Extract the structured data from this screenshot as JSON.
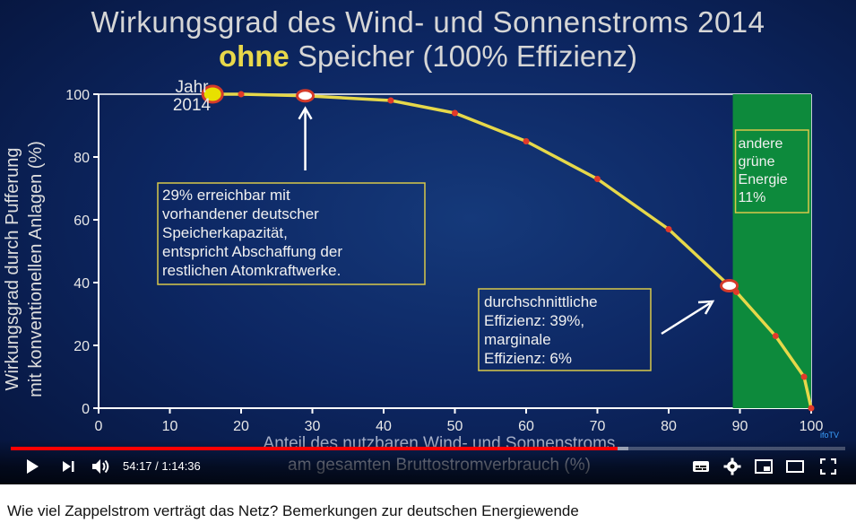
{
  "slide": {
    "title_line1": "Wirkungsgrad des Wind- und Sonnenstroms 2014",
    "title_line2_accent": "ohne",
    "title_line2_rest": " Speicher (100% Effizienz)",
    "year_label_line1": "Jahr",
    "year_label_line2": "2014",
    "green_zone_text": [
      "andere",
      "grüne",
      "Energie",
      "11%"
    ],
    "box1_text": [
      "29% erreichbar mit",
      "vorhandener deutscher",
      "Speicherkapazität,",
      "entspricht Abschaffung der",
      "restlichen Atomkraftwerke."
    ],
    "box2_text": [
      "durchschnittliche",
      "Effizienz: 39%,",
      "marginale",
      "Effizienz:  6%"
    ],
    "brand": "ifoTV"
  },
  "chart_data": {
    "type": "line",
    "ylabel_line1": "Wirkungsgrad durch Pufferung",
    "ylabel_line2": "mit konventionellen Anlagen (%)",
    "xlabel_line1": "Anteil des nutzbaren Wind- und Sonnenstroms",
    "xlabel_line2": "am gesamten Bruttostromverbrauch  (%)",
    "xlim": [
      0,
      100
    ],
    "ylim": [
      0,
      100
    ],
    "xticks": [
      0,
      10,
      20,
      30,
      40,
      50,
      60,
      70,
      80,
      90,
      100
    ],
    "yticks": [
      0,
      20,
      40,
      60,
      80,
      100
    ],
    "green_zone_from": 89,
    "series": [
      {
        "x": [
          16,
          20,
          29,
          41,
          50,
          60,
          70,
          80,
          88.5,
          89.5,
          95,
          99,
          100
        ],
        "y": [
          100,
          100,
          99.5,
          98,
          94,
          85,
          73,
          57,
          39,
          37,
          23,
          10,
          0
        ]
      }
    ],
    "highlight_points": [
      {
        "x": 16,
        "y": 100,
        "style": "year"
      },
      {
        "x": 29,
        "y": 99.5,
        "style": "ring"
      },
      {
        "x": 88.5,
        "y": 39,
        "style": "ring"
      }
    ],
    "line_color": "#e6d84a",
    "marker_color": "#e23a2a",
    "green_color": "#0d8a3c"
  },
  "player": {
    "time_current": "54:17",
    "time_total": "1:14:36",
    "progress": 0.727,
    "buffered": 0.74,
    "icons": [
      "play-icon",
      "next-icon",
      "volume-icon",
      "subtitles-icon",
      "settings-icon",
      "miniplayer-icon",
      "theater-icon",
      "fullscreen-icon"
    ]
  },
  "video_title": "Wie viel Zappelstrom verträgt das Netz? Bemerkungen zur deutschen Energiewende"
}
